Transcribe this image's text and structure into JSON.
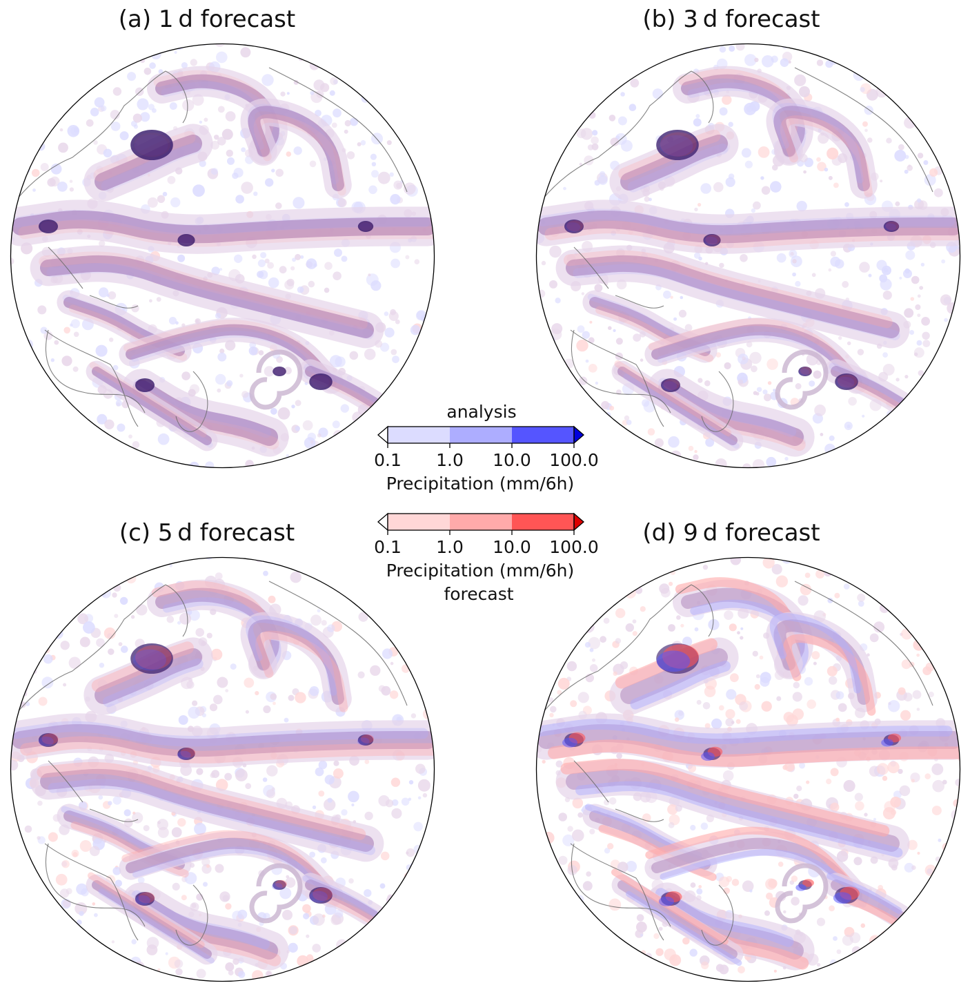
{
  "panels": [
    {
      "label": "(a) 1 d forecast"
    },
    {
      "label": "(b) 3 d forecast"
    },
    {
      "label": "(c) 5 d forecast"
    },
    {
      "label": "(d) 9 d forecast"
    }
  ],
  "colorbars": {
    "analysis": {
      "title": "analysis",
      "ticks": [
        "0.1",
        "1.0",
        "10.0",
        "100.0"
      ],
      "label": "Precipitation (mm/6h)",
      "colors": [
        "#dcdcff",
        "#adadff",
        "#5555ff",
        "#0000dd"
      ]
    },
    "forecast": {
      "title": "forecast",
      "ticks": [
        "0.1",
        "1.0",
        "10.0",
        "100.0"
      ],
      "label": "Precipitation (mm/6h)",
      "colors": [
        "#ffd7d7",
        "#ffaaaa",
        "#ff5555",
        "#dd0000"
      ]
    }
  },
  "overlap_color": "#b58fc0"
}
